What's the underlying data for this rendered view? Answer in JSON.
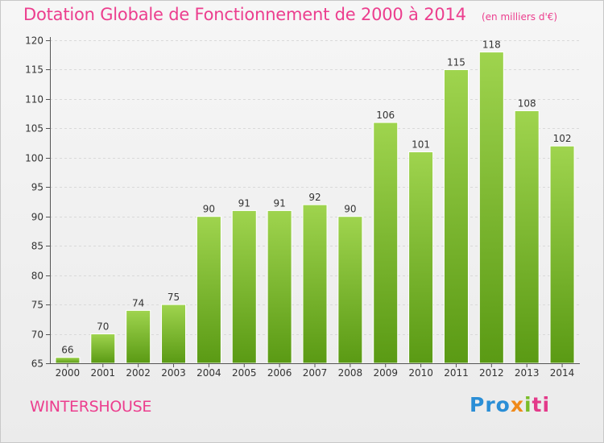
{
  "chart_data": {
    "type": "bar",
    "title": "Dotation Globale de Fonctionnement de 2000 à 2014",
    "subtitle": "(en milliers d'€)",
    "categories": [
      "2000",
      "2001",
      "2002",
      "2003",
      "2004",
      "2005",
      "2006",
      "2007",
      "2008",
      "2009",
      "2010",
      "2011",
      "2012",
      "2013",
      "2014"
    ],
    "values": [
      66,
      70,
      74,
      75,
      90,
      91,
      91,
      92,
      90,
      106,
      101,
      115,
      118,
      108,
      102
    ],
    "ylim": [
      65,
      120
    ],
    "yticks": [
      65,
      70,
      75,
      80,
      85,
      90,
      95,
      100,
      105,
      110,
      115,
      120
    ],
    "xlabel": "",
    "ylabel": "",
    "grid": true,
    "bar_color": "#8cc63f"
  },
  "commune": "WINTERSHOUSE",
  "logo_text": "Proxiti"
}
